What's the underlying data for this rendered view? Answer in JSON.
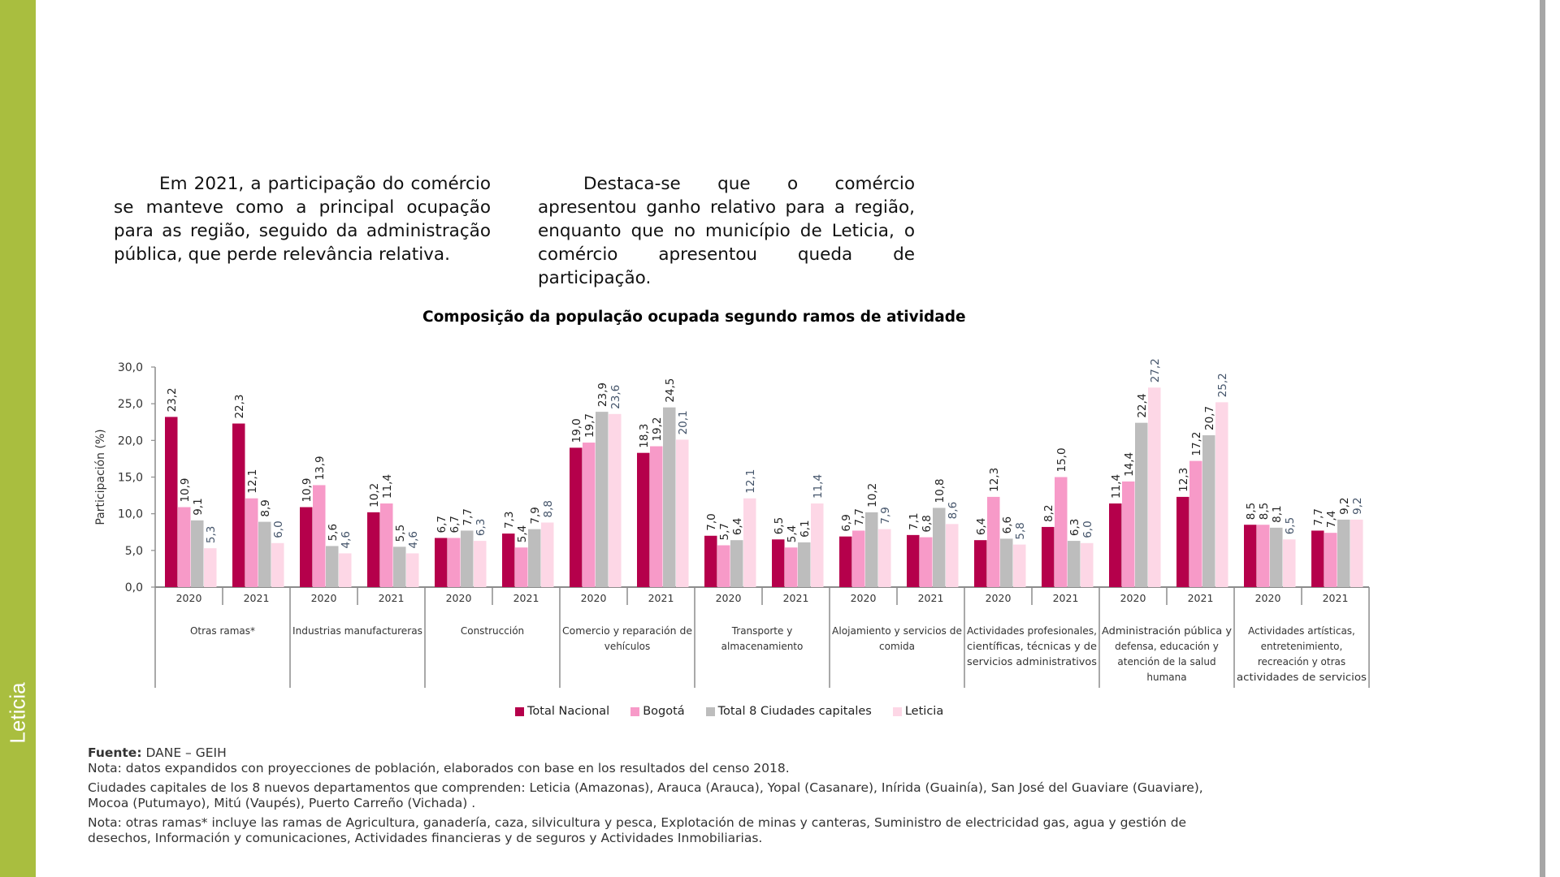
{
  "sidebar": {
    "label": "Leticia",
    "color": "#A9BE3F"
  },
  "paragraphs": [
    "Em 2021, a participação do comércio se manteve como a principal ocupação para as região, seguido da administração pública, que perde relevância relativa.",
    "Destaca-se que o comércio apresentou ganho relativo para a região, enquanto que no município de Leticia, o comércio apresentou queda de participação."
  ],
  "chart_data": {
    "type": "bar",
    "title": "Composição da população ocupada segundo ramos de atividade",
    "ylabel": "Participación (%)",
    "xlabel": "",
    "ylim": [
      0,
      30
    ],
    "yticks": [
      "0,0",
      "5,0",
      "10,0",
      "15,0",
      "20,0",
      "25,0",
      "30,0"
    ],
    "ytick_values": [
      0,
      5,
      10,
      15,
      20,
      25,
      30
    ],
    "grid": false,
    "legend_position": "bottom",
    "years": [
      "2020",
      "2021"
    ],
    "categories": [
      "Otras ramas*",
      "Industrias manufactureras",
      "Construcción",
      "Comercio y reparación de vehículos",
      "Transporte y almacenamiento",
      "Alojamiento y servicios de comida",
      "Actividades profesionales, científicas, técnicas y de servicios administrativos",
      "Administración pública y defensa, educación y atención de la salud humana",
      "Actividades artísticas, entretenimiento, recreación y otras actividades de servicios"
    ],
    "category_label_lines": [
      [
        "Otras ramas*"
      ],
      [
        "Industrias manufactureras"
      ],
      [
        "Construcción"
      ],
      [
        "Comercio y reparación de",
        "vehículos"
      ],
      [
        "Transporte y",
        "almacenamiento"
      ],
      [
        "Alojamiento y servicios de",
        "comida"
      ],
      [
        "Actividades profesionales,",
        "científicas, técnicas y de",
        "servicios administrativos"
      ],
      [
        "Administración pública y",
        "defensa, educación y",
        "atención de la salud",
        "humana"
      ],
      [
        "Actividades artísticas,",
        "entretenimiento,",
        "recreación y otras",
        "actividades de servicios"
      ]
    ],
    "series": [
      {
        "name": "Total Nacional",
        "color": "#B5004B",
        "label_color": "#222222",
        "values": [
          [
            23.2,
            22.3
          ],
          [
            10.9,
            10.2
          ],
          [
            6.7,
            7.3
          ],
          [
            19.0,
            18.3
          ],
          [
            7.0,
            6.5
          ],
          [
            6.9,
            7.1
          ],
          [
            6.4,
            8.2
          ],
          [
            11.4,
            12.3
          ],
          [
            8.5,
            7.7
          ]
        ]
      },
      {
        "name": "Bogotá",
        "color": "#F79AC8",
        "label_color": "#222222",
        "values": [
          [
            10.9,
            12.1
          ],
          [
            13.9,
            11.4
          ],
          [
            6.7,
            5.4
          ],
          [
            19.7,
            19.2
          ],
          [
            5.7,
            5.4
          ],
          [
            7.7,
            6.8
          ],
          [
            12.3,
            15.0
          ],
          [
            14.4,
            17.2
          ],
          [
            8.5,
            7.4
          ]
        ]
      },
      {
        "name": "Total 8 Ciudades capitales",
        "color": "#BDBDBD",
        "label_color": "#222222",
        "values": [
          [
            9.1,
            8.9
          ],
          [
            5.6,
            5.5
          ],
          [
            7.7,
            7.9
          ],
          [
            23.9,
            24.5
          ],
          [
            6.4,
            6.1
          ],
          [
            10.2,
            10.8
          ],
          [
            6.6,
            6.3
          ],
          [
            22.4,
            20.7
          ],
          [
            8.1,
            9.2
          ]
        ]
      },
      {
        "name": "Leticia",
        "color": "#FDD7E6",
        "label_color": "#44546A",
        "values": [
          [
            5.3,
            6.0
          ],
          [
            4.6,
            4.6
          ],
          [
            6.3,
            8.8
          ],
          [
            23.6,
            20.1
          ],
          [
            12.1,
            11.4
          ],
          [
            7.9,
            8.6
          ],
          [
            5.8,
            6.0
          ],
          [
            27.2,
            25.2
          ],
          [
            6.5,
            9.2
          ]
        ]
      }
    ]
  },
  "notes": {
    "source_label": "Fuente:",
    "source_value": "DANE – GEIH",
    "note1": "Nota: datos expandidos con proyecciones de población, elaborados con base en los resultados del censo 2018.",
    "note2_line1": "Ciudades capitales de los 8 nuevos departamentos que comprenden: Leticia (Amazonas),  Arauca (Arauca), Yopal (Casanare), Inírida (Guainía), San José del Guaviare (Guaviare),",
    "note2_line2": "Mocoa (Putumayo), Mitú (Vaupés), Puerto Carreño (Vichada) .",
    "note3_line1": "Nota: otras ramas* incluye las ramas de Agricultura, ganadería, caza, silvicultura y pesca, Explotación de minas y canteras, Suministro de electricidad gas, agua y gestión de",
    "note3_line2": "desechos, Información y comunicaciones, Actividades financieras y de seguros y Actividades Inmobiliarias."
  }
}
